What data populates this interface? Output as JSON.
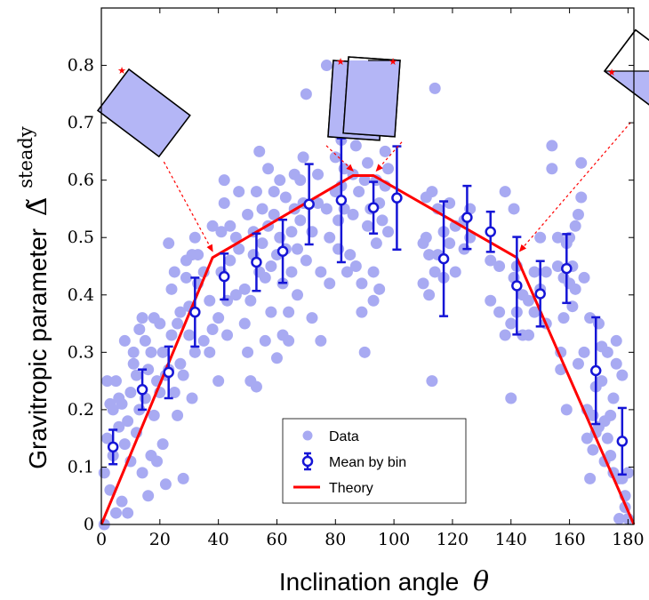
{
  "colors": {
    "data": "#a8aaf2",
    "mean": "#1515d6",
    "theory": "#ff0000",
    "inset_fill": "#b4b6f6"
  },
  "chart_data": {
    "type": "scatter",
    "xlabel_text": "Inclination angle",
    "xlabel_symbol": "θ",
    "ylabel_text": "Gravitropic parameter",
    "ylabel_symbol": "Δ̃",
    "ylabel_superscript": "steady",
    "xlim": [
      0,
      182
    ],
    "ylim": [
      0,
      0.9
    ],
    "xticks": [
      0,
      20,
      40,
      60,
      80,
      100,
      120,
      140,
      160,
      180
    ],
    "yticks": [
      0,
      0.1,
      0.2,
      0.3,
      0.4,
      0.5,
      0.6,
      0.7,
      0.8
    ],
    "ytick_labels": [
      "0",
      "0.1",
      "0.2",
      "0.3",
      "0.4",
      "0.5",
      "0.6",
      "0.7",
      "0.8"
    ],
    "legend": {
      "placement": "bottom-center",
      "entries": [
        "Data",
        "Mean by bin",
        "Theory"
      ]
    },
    "series": [
      {
        "name": "Data",
        "kind": "scatter",
        "points": [
          [
            1,
            0.0
          ],
          [
            1,
            0.09
          ],
          [
            2,
            0.15
          ],
          [
            2,
            0.25
          ],
          [
            3,
            0.21
          ],
          [
            3,
            0.06
          ],
          [
            4,
            0.12
          ],
          [
            4,
            0.2
          ],
          [
            5,
            0.02
          ],
          [
            5,
            0.25
          ],
          [
            6,
            0.17
          ],
          [
            6,
            0.22
          ],
          [
            7,
            0.04
          ],
          [
            7,
            0.21
          ],
          [
            8,
            0.14
          ],
          [
            8,
            0.32
          ],
          [
            9,
            0.18
          ],
          [
            9,
            0.02
          ],
          [
            10,
            0.23
          ],
          [
            10,
            0.11
          ],
          [
            11,
            0.28
          ],
          [
            11,
            0.3
          ],
          [
            12,
            0.16
          ],
          [
            12,
            0.26
          ],
          [
            13,
            0.34
          ],
          [
            13,
            0.2
          ],
          [
            14,
            0.36
          ],
          [
            14,
            0.09
          ],
          [
            15,
            0.22
          ],
          [
            15,
            0.32
          ],
          [
            16,
            0.27
          ],
          [
            16,
            0.05
          ],
          [
            17,
            0.12
          ],
          [
            17,
            0.3
          ],
          [
            18,
            0.19
          ],
          [
            18,
            0.36
          ],
          [
            19,
            0.11
          ],
          [
            19,
            0.25
          ],
          [
            20,
            0.23
          ],
          [
            20,
            0.35
          ],
          [
            21,
            0.14
          ],
          [
            21,
            0.3
          ],
          [
            22,
            0.26
          ],
          [
            22,
            0.07
          ],
          [
            23,
            0.27
          ],
          [
            23,
            0.49
          ],
          [
            24,
            0.33
          ],
          [
            24,
            0.41
          ],
          [
            25,
            0.23
          ],
          [
            25,
            0.44
          ],
          [
            26,
            0.35
          ],
          [
            26,
            0.19
          ],
          [
            27,
            0.28
          ],
          [
            27,
            0.37
          ],
          [
            28,
            0.26
          ],
          [
            28,
            0.08
          ],
          [
            29,
            0.43
          ],
          [
            29,
            0.46
          ],
          [
            30,
            0.33
          ],
          [
            30,
            0.38
          ],
          [
            31,
            0.22
          ],
          [
            31,
            0.47
          ],
          [
            32,
            0.5
          ],
          [
            32,
            0.3
          ],
          [
            33,
            0.42
          ],
          [
            33,
            0.47
          ],
          [
            35,
            0.32
          ],
          [
            35,
            0.44
          ],
          [
            37,
            0.3
          ],
          [
            37,
            0.39
          ],
          [
            38,
            0.34
          ],
          [
            38,
            0.52
          ],
          [
            40,
            0.25
          ],
          [
            40,
            0.36
          ],
          [
            41,
            0.44
          ],
          [
            41,
            0.51
          ],
          [
            42,
            0.56
          ],
          [
            42,
            0.6
          ],
          [
            43,
            0.33
          ],
          [
            43,
            0.39
          ],
          [
            44,
            0.46
          ],
          [
            44,
            0.52
          ],
          [
            46,
            0.4
          ],
          [
            46,
            0.5
          ],
          [
            47,
            0.58
          ],
          [
            47,
            0.48
          ],
          [
            49,
            0.35
          ],
          [
            49,
            0.41
          ],
          [
            50,
            0.3
          ],
          [
            50,
            0.54
          ],
          [
            51,
            0.39
          ],
          [
            51,
            0.25
          ],
          [
            52,
            0.47
          ],
          [
            52,
            0.51
          ],
          [
            53,
            0.58
          ],
          [
            53,
            0.24
          ],
          [
            54,
            0.65
          ],
          [
            54,
            0.44
          ],
          [
            55,
            0.49
          ],
          [
            55,
            0.55
          ],
          [
            56,
            0.32
          ],
          [
            56,
            0.43
          ],
          [
            57,
            0.52
          ],
          [
            57,
            0.62
          ],
          [
            58,
            0.37
          ],
          [
            58,
            0.45
          ],
          [
            59,
            0.54
          ],
          [
            59,
            0.58
          ],
          [
            60,
            0.29
          ],
          [
            60,
            0.47
          ],
          [
            61,
            0.5
          ],
          [
            61,
            0.6
          ],
          [
            62,
            0.33
          ],
          [
            62,
            0.42
          ],
          [
            63,
            0.48
          ],
          [
            63,
            0.57
          ],
          [
            64,
            0.32
          ],
          [
            64,
            0.37
          ],
          [
            65,
            0.51
          ],
          [
            65,
            0.44
          ],
          [
            66,
            0.55
          ],
          [
            66,
            0.61
          ],
          [
            67,
            0.4
          ],
          [
            67,
            0.48
          ],
          [
            68,
            0.53
          ],
          [
            68,
            0.6
          ],
          [
            69,
            0.56
          ],
          [
            69,
            0.64
          ],
          [
            70,
            0.46
          ],
          [
            70,
            0.75
          ],
          [
            72,
            0.36
          ],
          [
            72,
            0.51
          ],
          [
            74,
            0.56
          ],
          [
            74,
            0.61
          ],
          [
            75,
            0.32
          ],
          [
            75,
            0.44
          ],
          [
            77,
            0.55
          ],
          [
            77,
            0.8
          ],
          [
            78,
            0.42
          ],
          [
            78,
            0.5
          ],
          [
            80,
            0.58
          ],
          [
            80,
            0.64
          ],
          [
            81,
            0.48
          ],
          [
            81,
            0.53
          ],
          [
            82,
            0.59
          ],
          [
            82,
            0.67
          ],
          [
            83,
            0.55
          ],
          [
            83,
            0.62
          ],
          [
            84,
            0.44
          ],
          [
            84,
            0.71
          ],
          [
            85,
            0.7
          ],
          [
            85,
            0.47
          ],
          [
            86,
            0.54
          ],
          [
            86,
            0.61
          ],
          [
            87,
            0.45
          ],
          [
            87,
            0.66
          ],
          [
            88,
            0.58
          ],
          [
            88,
            0.68
          ],
          [
            89,
            0.37
          ],
          [
            89,
            0.42
          ],
          [
            90,
            0.3
          ],
          [
            90,
            0.6
          ],
          [
            91,
            0.52
          ],
          [
            91,
            0.63
          ],
          [
            92,
            0.55
          ],
          [
            92,
            0.69
          ],
          [
            93,
            0.39
          ],
          [
            93,
            0.44
          ],
          [
            94,
            0.49
          ],
          [
            94,
            0.6
          ],
          [
            95,
            0.41
          ],
          [
            95,
            0.56
          ],
          [
            96,
            0.53
          ],
          [
            96,
            0.7
          ],
          [
            97,
            0.59
          ],
          [
            97,
            0.65
          ],
          [
            98,
            0.51
          ],
          [
            98,
            0.62
          ],
          [
            110,
            0.42
          ],
          [
            110,
            0.49
          ],
          [
            111,
            0.57
          ],
          [
            111,
            0.5
          ],
          [
            112,
            0.4
          ],
          [
            112,
            0.47
          ],
          [
            113,
            0.25
          ],
          [
            113,
            0.58
          ],
          [
            114,
            0.44
          ],
          [
            114,
            0.76
          ],
          [
            115,
            0.47
          ],
          [
            115,
            0.55
          ],
          [
            117,
            0.51
          ],
          [
            117,
            0.43
          ],
          [
            119,
            0.56
          ],
          [
            119,
            0.49
          ],
          [
            121,
            0.44
          ],
          [
            121,
            0.52
          ],
          [
            124,
            0.48
          ],
          [
            124,
            0.53
          ],
          [
            126,
            0.5
          ],
          [
            126,
            0.55
          ],
          [
            133,
            0.46
          ],
          [
            133,
            0.39
          ],
          [
            136,
            0.37
          ],
          [
            136,
            0.45
          ],
          [
            138,
            0.58
          ],
          [
            138,
            0.33
          ],
          [
            140,
            0.35
          ],
          [
            140,
            0.22
          ],
          [
            141,
            0.43
          ],
          [
            141,
            0.55
          ],
          [
            142,
            0.45
          ],
          [
            142,
            0.37
          ],
          [
            144,
            0.33
          ],
          [
            144,
            0.4
          ],
          [
            146,
            0.33
          ],
          [
            146,
            0.39
          ],
          [
            148,
            0.37
          ],
          [
            148,
            0.44
          ],
          [
            150,
            0.41
          ],
          [
            150,
            0.5
          ],
          [
            152,
            0.35
          ],
          [
            152,
            0.44
          ],
          [
            154,
            0.62
          ],
          [
            154,
            0.66
          ],
          [
            156,
            0.45
          ],
          [
            156,
            0.5
          ],
          [
            157,
            0.3
          ],
          [
            157,
            0.27
          ],
          [
            158,
            0.36
          ],
          [
            158,
            0.43
          ],
          [
            159,
            0.49
          ],
          [
            159,
            0.2
          ],
          [
            160,
            0.5
          ],
          [
            160,
            0.42
          ],
          [
            161,
            0.38
          ],
          [
            161,
            0.45
          ],
          [
            162,
            0.41
          ],
          [
            162,
            0.52
          ],
          [
            163,
            0.54
          ],
          [
            163,
            0.28
          ],
          [
            164,
            0.57
          ],
          [
            164,
            0.63
          ],
          [
            165,
            0.43
          ],
          [
            165,
            0.3
          ],
          [
            166,
            0.15
          ],
          [
            166,
            0.2
          ],
          [
            167,
            0.08
          ],
          [
            167,
            0.36
          ],
          [
            168,
            0.13
          ],
          [
            168,
            0.19
          ],
          [
            169,
            0.24
          ],
          [
            169,
            0.16
          ],
          [
            170,
            0.35
          ],
          [
            170,
            0.17
          ],
          [
            171,
            0.31
          ],
          [
            171,
            0.25
          ],
          [
            172,
            0.18
          ],
          [
            172,
            0.11
          ],
          [
            173,
            0.3
          ],
          [
            173,
            0.15
          ],
          [
            174,
            0.12
          ],
          [
            174,
            0.19
          ],
          [
            175,
            0.09
          ],
          [
            175,
            0.22
          ],
          [
            176,
            0.32
          ],
          [
            176,
            0.28
          ],
          [
            177,
            0.08
          ],
          [
            177,
            0.01
          ],
          [
            178,
            0.26
          ],
          [
            178,
            0.08
          ],
          [
            179,
            0.05
          ],
          [
            179,
            0.03
          ],
          [
            180,
            0.09
          ],
          [
            180,
            0.01
          ]
        ]
      },
      {
        "name": "Mean by bin",
        "kind": "errorbar",
        "points": [
          [
            4,
            0.135,
            0.03
          ],
          [
            14,
            0.235,
            0.035
          ],
          [
            23,
            0.265,
            0.045
          ],
          [
            32,
            0.37,
            0.06
          ],
          [
            42,
            0.432,
            0.04
          ],
          [
            53,
            0.457,
            0.05
          ],
          [
            62,
            0.476,
            0.055
          ],
          [
            71,
            0.558,
            0.07
          ],
          [
            82,
            0.565,
            0.108
          ],
          [
            93,
            0.552,
            0.045
          ],
          [
            101,
            0.569,
            0.09
          ],
          [
            117,
            0.463,
            0.1
          ],
          [
            125,
            0.535,
            0.055
          ],
          [
            133,
            0.51,
            0.035
          ],
          [
            142,
            0.416,
            0.085
          ],
          [
            150,
            0.402,
            0.057
          ],
          [
            159,
            0.446,
            0.06
          ],
          [
            169,
            0.268,
            0.093
          ],
          [
            178,
            0.145,
            0.058
          ]
        ]
      },
      {
        "name": "Theory",
        "kind": "line",
        "points": [
          [
            0,
            0.0
          ],
          [
            38,
            0.465
          ],
          [
            86,
            0.608
          ],
          [
            93,
            0.608
          ],
          [
            142,
            0.465
          ],
          [
            182,
            0.0
          ]
        ]
      }
    ],
    "insets": [
      {
        "shape": "tilted-container",
        "angle_deg": 37,
        "arrow_target": [
          38,
          0.47
        ]
      },
      {
        "shape": "tilted-container",
        "angle_deg": 86,
        "arrow_target": [
          86,
          0.61
        ]
      },
      {
        "shape": "tilted-container",
        "angle_deg": 94,
        "arrow_target": [
          94,
          0.61
        ]
      },
      {
        "shape": "tilted-container",
        "angle_deg": 143,
        "arrow_target": [
          143,
          0.47
        ]
      }
    ]
  }
}
